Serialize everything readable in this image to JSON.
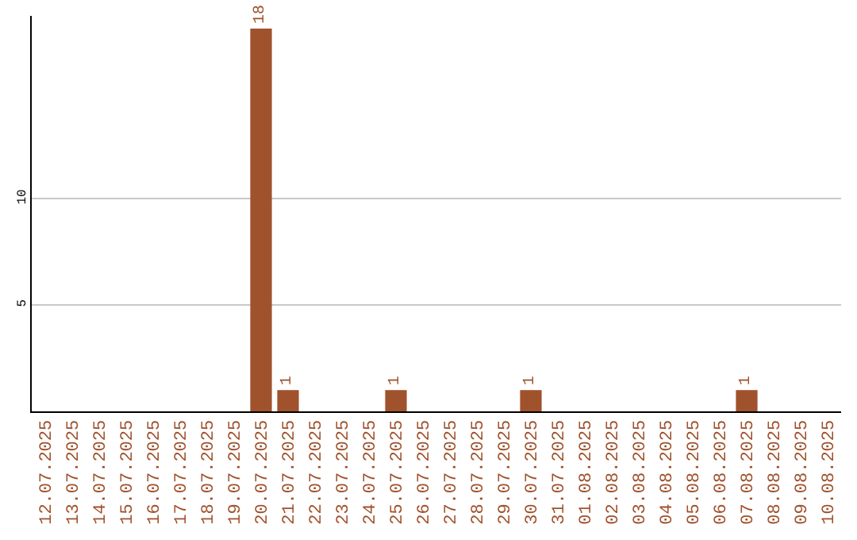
{
  "chart_data": {
    "type": "bar",
    "categories": [
      "12.07.2025",
      "13.07.2025",
      "14.07.2025",
      "15.07.2025",
      "16.07.2025",
      "17.07.2025",
      "18.07.2025",
      "19.07.2025",
      "20.07.2025",
      "21.07.2025",
      "22.07.2025",
      "23.07.2025",
      "24.07.2025",
      "25.07.2025",
      "26.07.2025",
      "27.07.2025",
      "28.07.2025",
      "29.07.2025",
      "30.07.2025",
      "31.07.2025",
      "01.08.2025",
      "02.08.2025",
      "03.08.2025",
      "04.08.2025",
      "05.08.2025",
      "06.08.2025",
      "07.08.2025",
      "08.08.2025",
      "09.08.2025",
      "10.08.2025"
    ],
    "values": [
      0,
      0,
      0,
      0,
      0,
      0,
      0,
      0,
      18,
      1,
      0,
      0,
      0,
      1,
      0,
      0,
      0,
      0,
      1,
      0,
      0,
      0,
      0,
      0,
      0,
      0,
      1,
      0,
      0,
      0
    ],
    "value_labels": [
      null,
      null,
      null,
      null,
      null,
      null,
      null,
      null,
      "18",
      "1",
      null,
      null,
      null,
      "1",
      null,
      null,
      null,
      null,
      "1",
      null,
      null,
      null,
      null,
      null,
      null,
      null,
      "1",
      null,
      null,
      null
    ],
    "color": "#a0522d",
    "ylim": [
      0,
      18.6
    ],
    "yticks": [
      5,
      10
    ],
    "grid": "y",
    "legend": false
  }
}
